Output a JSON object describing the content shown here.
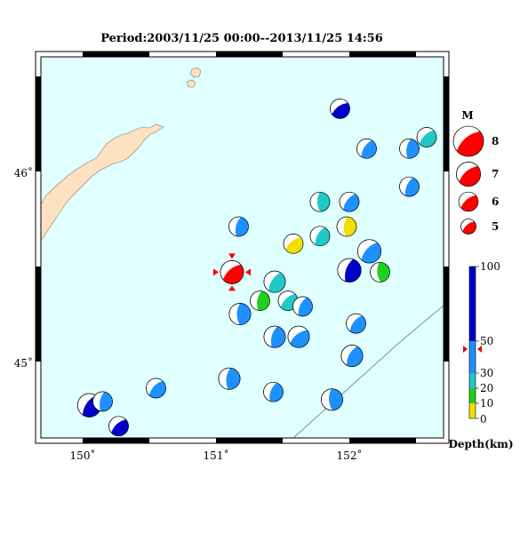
{
  "title": "Period:2003/11/25 00:00--2013/11/25 14:56",
  "colors": {
    "ocean": "#e0ffff",
    "land": "#fde1c1",
    "frame": "#000000",
    "target": "#ff0000",
    "trench": "#5a6a7a"
  },
  "map": {
    "lon_labels": [
      "150˚",
      "151˚",
      "152˚"
    ],
    "lat_labels": [
      "46˚",
      "45˚"
    ],
    "lon_values": [
      150,
      151,
      152
    ],
    "lat_values": [
      46,
      45
    ]
  },
  "events": [
    {
      "lon": 151.93,
      "lat": 46.33,
      "depth_class": "deep",
      "color": "#0000c8",
      "size": 1
    },
    {
      "lon": 152.13,
      "lat": 46.12,
      "depth_class": "mid",
      "color": "#1e90ff",
      "size": 1
    },
    {
      "lon": 152.45,
      "lat": 46.12,
      "depth_class": "mid",
      "color": "#1e90ff",
      "size": 1
    },
    {
      "lon": 152.58,
      "lat": 46.18,
      "depth_class": "shallow",
      "color": "#20c8c8",
      "size": 1
    },
    {
      "lon": 152.45,
      "lat": 45.92,
      "depth_class": "mid",
      "color": "#1e90ff",
      "size": 1
    },
    {
      "lon": 151.78,
      "lat": 45.84,
      "depth_class": "shallow",
      "color": "#20c8c8",
      "size": 1
    },
    {
      "lon": 152.0,
      "lat": 45.84,
      "depth_class": "mid",
      "color": "#1e90ff",
      "size": 1
    },
    {
      "lon": 151.17,
      "lat": 45.71,
      "depth_class": "mid",
      "color": "#1e90ff",
      "size": 1
    },
    {
      "lon": 151.58,
      "lat": 45.62,
      "depth_class": "very-shallow",
      "color": "#f0e000",
      "size": 1
    },
    {
      "lon": 151.78,
      "lat": 45.66,
      "depth_class": "shallow",
      "color": "#20c8c8",
      "size": 1
    },
    {
      "lon": 151.98,
      "lat": 45.71,
      "depth_class": "very-shallow",
      "color": "#f0e000",
      "size": 1
    },
    {
      "lon": 152.15,
      "lat": 45.58,
      "depth_class": "mid",
      "color": "#1e90ff",
      "size": 1.2
    },
    {
      "lon": 152.0,
      "lat": 45.48,
      "depth_class": "deep",
      "color": "#0000c8",
      "size": 1.2
    },
    {
      "lon": 152.23,
      "lat": 45.47,
      "depth_class": "green",
      "color": "#20d020",
      "size": 1
    },
    {
      "lon": 151.44,
      "lat": 45.42,
      "depth_class": "shallow",
      "color": "#20c8c8",
      "size": 1.1
    },
    {
      "lon": 151.33,
      "lat": 45.32,
      "depth_class": "green",
      "color": "#20d020",
      "size": 1
    },
    {
      "lon": 151.54,
      "lat": 45.32,
      "depth_class": "shallow",
      "color": "#20c8c8",
      "size": 1
    },
    {
      "lon": 151.65,
      "lat": 45.29,
      "depth_class": "mid",
      "color": "#1e90ff",
      "size": 1
    },
    {
      "lon": 151.18,
      "lat": 45.25,
      "depth_class": "mid",
      "color": "#1e90ff",
      "size": 1.1
    },
    {
      "lon": 152.05,
      "lat": 45.2,
      "depth_class": "mid",
      "color": "#1e90ff",
      "size": 1
    },
    {
      "lon": 151.44,
      "lat": 45.13,
      "depth_class": "mid",
      "color": "#1e90ff",
      "size": 1.1
    },
    {
      "lon": 151.62,
      "lat": 45.13,
      "depth_class": "mid",
      "color": "#1e90ff",
      "size": 1.1
    },
    {
      "lon": 152.02,
      "lat": 45.03,
      "depth_class": "mid",
      "color": "#1e90ff",
      "size": 1.1
    },
    {
      "lon": 151.1,
      "lat": 44.91,
      "depth_class": "mid",
      "color": "#1e90ff",
      "size": 1.1
    },
    {
      "lon": 150.55,
      "lat": 44.86,
      "depth_class": "mid",
      "color": "#1e90ff",
      "size": 1
    },
    {
      "lon": 151.43,
      "lat": 44.84,
      "depth_class": "mid",
      "color": "#1e90ff",
      "size": 1
    },
    {
      "lon": 151.87,
      "lat": 44.8,
      "depth_class": "mid",
      "color": "#1e90ff",
      "size": 1.1
    },
    {
      "lon": 150.05,
      "lat": 44.77,
      "depth_class": "deep",
      "color": "#0000c8",
      "size": 1.2
    },
    {
      "lon": 150.15,
      "lat": 44.79,
      "depth_class": "mid",
      "color": "#1e90ff",
      "size": 1
    },
    {
      "lon": 150.27,
      "lat": 44.66,
      "depth_class": "deep",
      "color": "#0000c8",
      "size": 1
    }
  ],
  "target_event": {
    "lon": 151.12,
    "lat": 45.47,
    "color": "#ff0000"
  },
  "magnitude_legend": {
    "header": "M",
    "entries": [
      {
        "label": "8",
        "scale": 1.0
      },
      {
        "label": "7",
        "scale": 0.8
      },
      {
        "label": "6",
        "scale": 0.64
      },
      {
        "label": "5",
        "scale": 0.5
      }
    ]
  },
  "depth_colorbar": {
    "label": "Depth(km)",
    "ticks": [
      "100",
      "50",
      "30",
      "20",
      "10",
      "0"
    ],
    "tick_values": [
      100,
      50,
      30,
      20,
      10,
      0
    ],
    "segments": [
      {
        "from": 0,
        "to": 10,
        "color": "#f0e000"
      },
      {
        "from": 10,
        "to": 20,
        "color": "#20d020"
      },
      {
        "from": 20,
        "to": 30,
        "color": "#20c8c8"
      },
      {
        "from": 30,
        "to": 50,
        "color": "#1e90ff"
      },
      {
        "from": 50,
        "to": 100,
        "color": "#0000c8"
      }
    ],
    "marker_value": 45
  }
}
